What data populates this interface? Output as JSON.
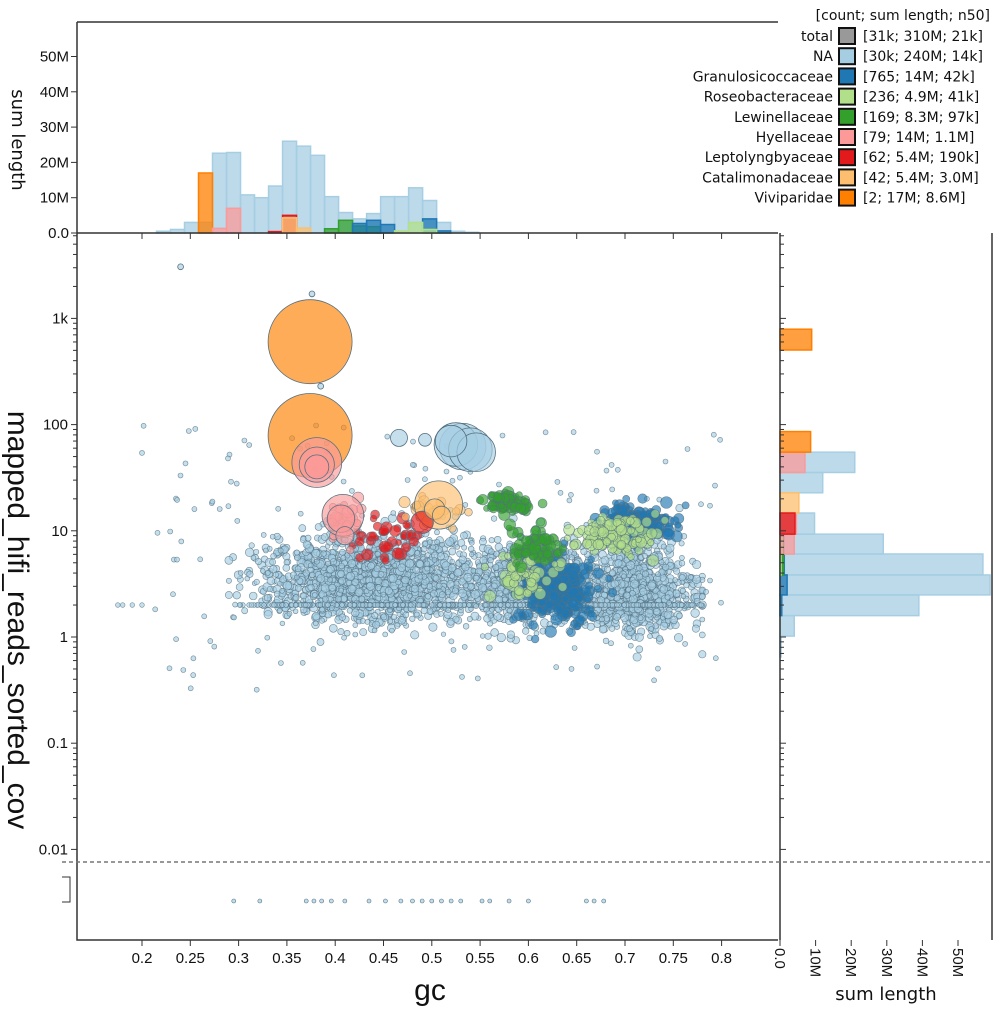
{
  "chart_data": {
    "type": "scatter",
    "xlabel": "gc",
    "ylabel": "mapped_hifi_reads_sorted_cov",
    "xlim": [
      0.133,
      0.858
    ],
    "ylim": [
      0.005,
      6300
    ],
    "yscale": "log",
    "x_ticks": [
      "0.2",
      "0.25",
      "0.3",
      "0.35",
      "0.4",
      "0.45",
      "0.5",
      "0.55",
      "0.6",
      "0.65",
      "0.7",
      "0.75",
      "0.8"
    ],
    "y_ticks": [
      {
        "v": 1000,
        "label": "1k"
      },
      {
        "v": 100,
        "label": "100"
      },
      {
        "v": 10,
        "label": "10"
      },
      {
        "v": 1,
        "label": "1"
      },
      {
        "v": 0.1,
        "label": "0.1"
      },
      {
        "v": 0.01,
        "label": "0.01"
      }
    ],
    "legend": {
      "header": "[count; sum length; n50]",
      "placement": "top-right",
      "entries": [
        {
          "name": "total",
          "color": "#999999",
          "stats": "[31k; 310M; 21k]"
        },
        {
          "name": "NA",
          "color": "#a6cee3",
          "stats": "[30k; 240M; 14k]"
        },
        {
          "name": "Granulosicoccaceae",
          "color": "#1f78b4",
          "stats": "[765; 14M; 42k]"
        },
        {
          "name": "Roseobacteraceae",
          "color": "#b2df8a",
          "stats": "[236; 4.9M; 41k]"
        },
        {
          "name": "Lewinellaceae",
          "color": "#33a02c",
          "stats": "[169; 8.3M; 97k]"
        },
        {
          "name": "Hyellaceae",
          "color": "#fb9a99",
          "stats": "[79; 14M; 1.1M]"
        },
        {
          "name": "Leptolyngbyaceae",
          "color": "#e31a1c",
          "stats": "[62; 5.4M; 190k]"
        },
        {
          "name": "Catalimonadaceae",
          "color": "#fdbf6f",
          "stats": "[42; 5.4M; 3.0M]"
        },
        {
          "name": "Viviparidae",
          "color": "#ff7f00",
          "stats": "[2; 17M; 8.6M]"
        }
      ]
    },
    "notable_points": [
      {
        "cat": "Viviparidae",
        "gc": 0.374,
        "cov": 604,
        "length": 8500000
      },
      {
        "cat": "Viviparidae",
        "gc": 0.374,
        "cov": 79,
        "length": 8500000
      },
      {
        "cat": "Hyellaceae",
        "gc": 0.381,
        "cov": 44,
        "length": 3000000
      },
      {
        "cat": "Hyellaceae",
        "gc": 0.381,
        "cov": 42,
        "length": 1500000
      },
      {
        "cat": "Hyellaceae",
        "gc": 0.381,
        "cov": 40,
        "length": 700000
      },
      {
        "cat": "Hyellaceae",
        "gc": 0.408,
        "cov": 14,
        "length": 2100000
      },
      {
        "cat": "Hyellaceae",
        "gc": 0.406,
        "cov": 13,
        "length": 900000
      },
      {
        "cat": "Hyellaceae",
        "gc": 0.41,
        "cov": 9,
        "length": 400000
      },
      {
        "cat": "Catalimonadaceae",
        "gc": 0.507,
        "cov": 17.5,
        "length": 2800000
      },
      {
        "cat": "Catalimonadaceae",
        "gc": 0.503,
        "cov": 16,
        "length": 500000
      },
      {
        "cat": "Catalimonadaceae",
        "gc": 0.51,
        "cov": 14,
        "length": 400000
      },
      {
        "cat": "Leptolyngbyaceae",
        "gc": 0.49,
        "cov": 12,
        "length": 600000
      },
      {
        "cat": "NA",
        "gc": 0.525,
        "cov": 65,
        "length": 2300000
      },
      {
        "cat": "NA",
        "gc": 0.532,
        "cov": 62,
        "length": 2600000
      },
      {
        "cat": "NA",
        "gc": 0.54,
        "cov": 58,
        "length": 2300000
      },
      {
        "cat": "NA",
        "gc": 0.546,
        "cov": 55,
        "length": 1800000
      },
      {
        "cat": "NA",
        "gc": 0.52,
        "cov": 70,
        "length": 1200000
      },
      {
        "cat": "NA",
        "gc": 0.466,
        "cov": 75,
        "length": 350000
      },
      {
        "cat": "NA",
        "gc": 0.493,
        "cov": 72,
        "length": 200000
      },
      {
        "cat": "NA",
        "gc": 0.24,
        "cov": 3060,
        "length": 40000
      },
      {
        "cat": "NA",
        "gc": 0.376,
        "cov": 1700,
        "length": 40000
      },
      {
        "cat": "NA",
        "gc": 0.385,
        "cov": 230,
        "length": 40000
      }
    ],
    "zero_cov_points_gc": [
      0.295,
      0.322,
      0.37,
      0.378,
      0.386,
      0.396,
      0.41,
      0.435,
      0.452,
      0.468,
      0.48,
      0.49,
      0.5,
      0.51,
      0.52,
      0.53,
      0.552,
      0.56,
      0.58,
      0.6,
      0.66,
      0.668,
      0.678
    ],
    "top_histogram": {
      "ylabel": "sum length",
      "y_ticks": [
        "0.0",
        "10M",
        "20M",
        "30M",
        "40M",
        "50M"
      ],
      "ylim": [
        0,
        59000000
      ],
      "bin_start": 0.215,
      "bin_width": 0.0145,
      "series": [
        {
          "name": "NA",
          "values": [
            0.5,
            1,
            3,
            3,
            22.6,
            22.8,
            10.8,
            10,
            13.3,
            26,
            24.6,
            22,
            10.3,
            5.8,
            4,
            5.5,
            10.3,
            10.3,
            12.8,
            9.2,
            3,
            0.5,
            0.2
          ]
        },
        {
          "name": "Viviparidae",
          "values": [
            0,
            0,
            0,
            17
          ]
        },
        {
          "name": "Hyellaceae",
          "values": [
            0,
            0,
            0,
            0,
            1.3,
            7
          ]
        },
        {
          "name": "Leptolyngbyaceae",
          "values": [
            0,
            0,
            0,
            0,
            0,
            0,
            0,
            0,
            0.4,
            5
          ]
        },
        {
          "name": "Catalimonadaceae",
          "values": [
            0,
            0,
            0,
            0,
            0,
            0,
            0,
            0,
            0,
            4.3,
            1.4
          ]
        },
        {
          "name": "Lewinellaceae",
          "values": [
            0,
            0,
            0,
            0,
            0,
            0,
            0,
            0,
            0,
            0,
            0,
            0,
            1.2,
            3.6,
            2,
            1.8
          ]
        },
        {
          "name": "Granulosicoccaceae",
          "values": [
            0,
            0,
            0,
            0,
            0,
            0,
            0,
            0,
            0,
            0,
            0,
            0,
            0,
            0,
            2.7,
            3.6,
            2.4,
            0,
            0,
            4,
            0.6
          ]
        },
        {
          "name": "Roseobacteraceae",
          "values": [
            0,
            0,
            0,
            0,
            0,
            0,
            0,
            0,
            0,
            0,
            0,
            0,
            0,
            0,
            0,
            0,
            0,
            0.6,
            3,
            1
          ]
        }
      ]
    },
    "right_histogram": {
      "xlabel": "sum length",
      "x_ticks": [
        "0.0",
        "10M",
        "20M",
        "30M",
        "40M",
        "50M"
      ],
      "xlim": [
        0,
        59500000
      ],
      "series": [
        {
          "name": "NA",
          "bins": [
            [
              1.02,
              1.59,
              4
            ],
            [
              1.59,
              2.49,
              39
            ],
            [
              2.49,
              3.84,
              59
            ],
            [
              3.84,
              6.05,
              57
            ],
            [
              6.05,
              9.3,
              29
            ],
            [
              9.3,
              14.7,
              9.7
            ],
            [
              22.8,
              35.4,
              12
            ],
            [
              35.4,
              55,
              21
            ],
            [
              0.65,
              1.02,
              0.3
            ]
          ]
        },
        {
          "name": "Granulosicoccaceae",
          "bins": [
            [
              1.59,
              2.49,
              0.5
            ],
            [
              2.49,
              3.84,
              2
            ],
            [
              3.84,
              6.05,
              1.2
            ],
            [
              6.05,
              9.3,
              1
            ]
          ]
        },
        {
          "name": "Lewinellaceae",
          "bins": [
            [
              3.84,
              6.05,
              1
            ],
            [
              6.05,
              9.3,
              0.8
            ]
          ]
        },
        {
          "name": "Roseobacteraceae",
          "bins": [
            [
              6.05,
              9.3,
              0.6
            ],
            [
              3.84,
              6.05,
              0.3
            ]
          ]
        },
        {
          "name": "Hyellaceae",
          "bins": [
            [
              35.4,
              55,
              7
            ],
            [
              9.3,
              14.7,
              4.6
            ],
            [
              6.05,
              9.3,
              4
            ]
          ]
        },
        {
          "name": "Catalimonadaceae",
          "bins": [
            [
              14.7,
              22.8,
              5.3
            ]
          ]
        },
        {
          "name": "Leptolyngbyaceae",
          "bins": [
            [
              9.3,
              14.7,
              4.2
            ]
          ]
        },
        {
          "name": "Viviparidae",
          "bins": [
            [
              504,
              791,
              8.9
            ],
            [
              55,
              86,
              8.6
            ]
          ]
        }
      ]
    }
  }
}
